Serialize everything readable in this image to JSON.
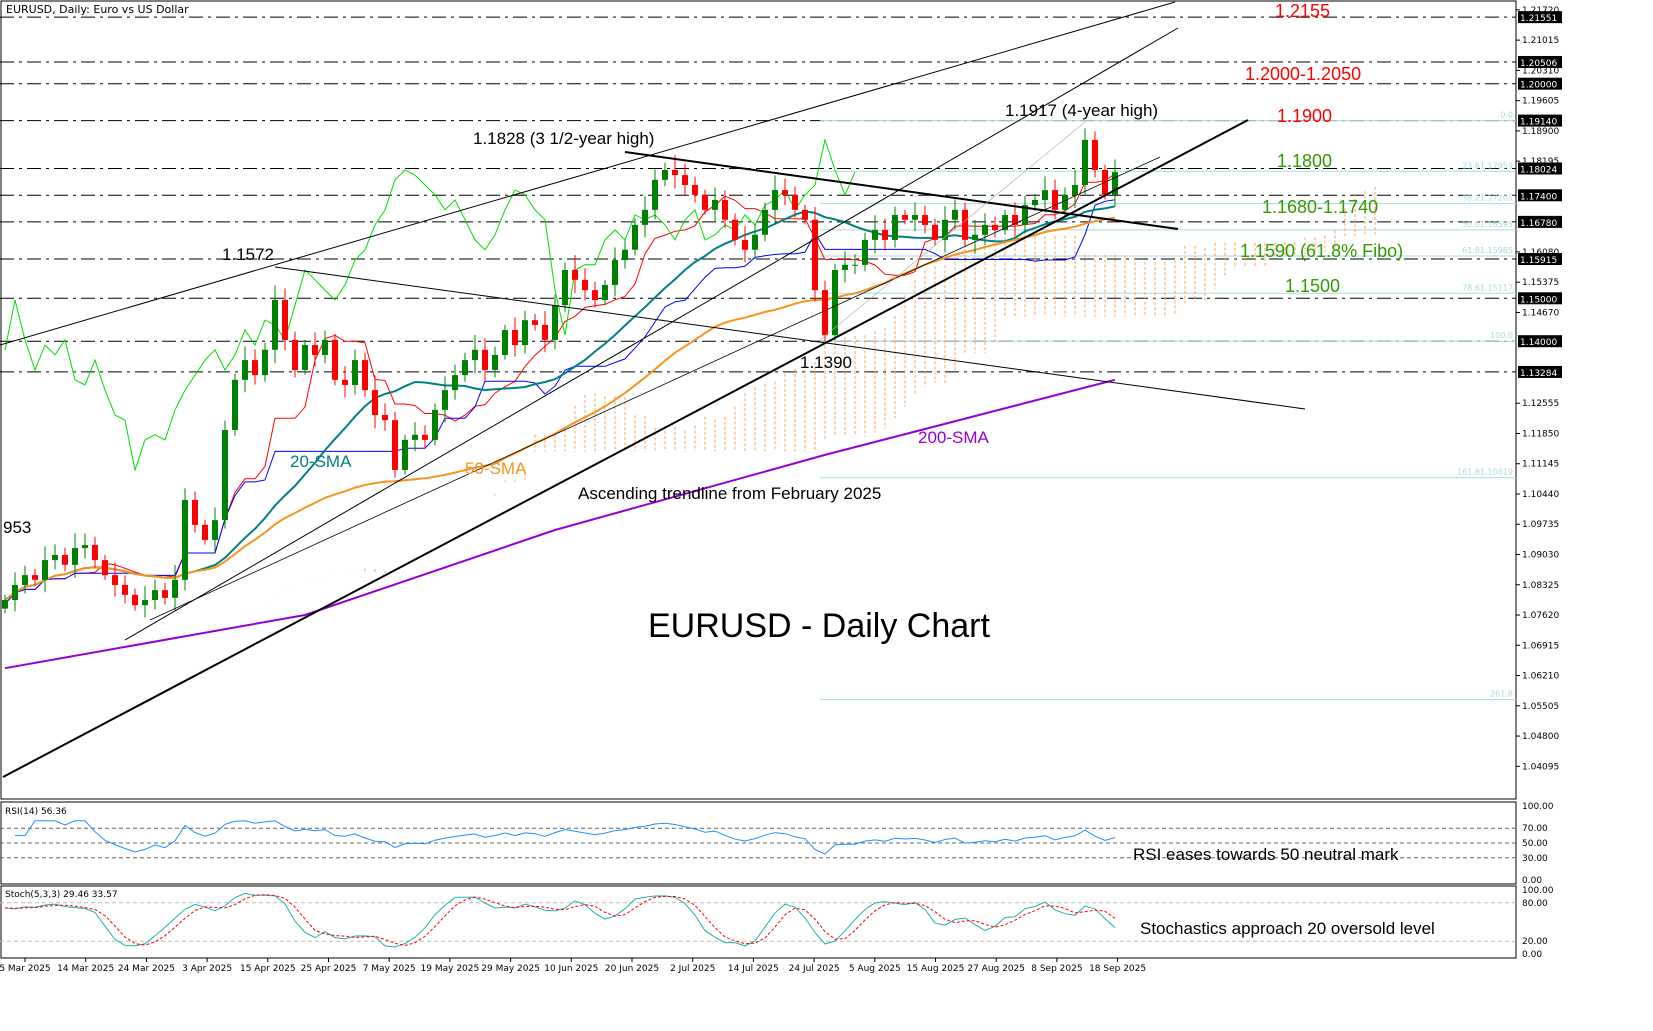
{
  "header": {
    "title": "EURUSD, Daily:  Euro vs US Dollar"
  },
  "chart_data": {
    "type": "candlestick",
    "title": "EURUSD - Daily Chart",
    "symbol": "EURUSD",
    "timeframe": "Daily",
    "price_axis": {
      "range": [
        1.0376,
        1.2195
      ],
      "ticks": [
        "1.21720",
        "1.21015",
        "1.20310",
        "1.19605",
        "1.18900",
        "1.18195",
        "1.16080",
        "1.15375",
        "1.14670",
        "1.12555",
        "1.11850",
        "1.11145",
        "1.10440",
        "1.09735",
        "1.09030",
        "1.08325",
        "1.07620",
        "1.06915",
        "1.06210",
        "1.05505",
        "1.04800",
        "1.04095"
      ],
      "highlighted_levels": [
        "1.21551",
        "1.20506",
        "1.20000",
        "1.19140",
        "1.18024",
        "1.17400",
        "1.16780",
        "1.15915",
        "1.15000",
        "1.14000",
        "1.13284"
      ]
    },
    "date_ticks": [
      "5 Mar 2025",
      "14 Mar 2025",
      "24 Mar 2025",
      "3 Apr 2025",
      "15 Apr 2025",
      "25 Apr 2025",
      "7 May 2025",
      "19 May 2025",
      "29 May 2025",
      "10 Jun 2025",
      "20 Jun 2025",
      "2 Jul 2025",
      "14 Jul 2025",
      "24 Jul 2025",
      "5 Aug 2025",
      "15 Aug 2025",
      "27 Aug 2025",
      "8 Sep 2025",
      "18 Sep 2025"
    ],
    "closes": [
      1.0797,
      1.0832,
      1.0855,
      1.0844,
      1.089,
      1.0902,
      1.0879,
      1.0918,
      1.0925,
      1.089,
      1.0855,
      1.0832,
      1.0809,
      1.0785,
      1.0797,
      1.082,
      1.0802,
      1.0844,
      1.103,
      1.0972,
      1.0937,
      1.0983,
      1.1193,
      1.131,
      1.1356,
      1.1321,
      1.138,
      1.1496,
      1.1403,
      1.1333,
      1.1391,
      1.1368,
      1.1403,
      1.131,
      1.1298,
      1.1356,
      1.1286,
      1.1228,
      1.1216,
      1.11,
      1.117,
      1.1182,
      1.117,
      1.124,
      1.1286,
      1.1321,
      1.1356,
      1.138,
      1.1333,
      1.1368,
      1.1426,
      1.1391,
      1.1449,
      1.1438,
      1.1403,
      1.1484,
      1.1566,
      1.1543,
      1.1519,
      1.1496,
      1.1531,
      1.1589,
      1.1613,
      1.1671,
      1.1706,
      1.1776,
      1.1799,
      1.1787,
      1.1764,
      1.1741,
      1.1706,
      1.1729,
      1.1683,
      1.1636,
      1.1613,
      1.1648,
      1.1706,
      1.1752,
      1.1741,
      1.1706,
      1.1683,
      1.1519,
      1.1414,
      1.1566,
      1.1578,
      1.1578,
      1.1636,
      1.1659,
      1.1636,
      1.1694,
      1.1683,
      1.1694,
      1.1671,
      1.1636,
      1.1683,
      1.1706,
      1.1636,
      1.1648,
      1.1671,
      1.1659,
      1.1694,
      1.1671,
      1.1717,
      1.1729,
      1.1752,
      1.1706,
      1.1741,
      1.1764,
      1.1869,
      1.1799,
      1.1741,
      1.1794
    ],
    "sma200": [
      [
        0,
        1.0638
      ],
      [
        30,
        1.0762
      ],
      [
        55,
        1.096
      ],
      [
        82,
        1.1135
      ],
      [
        111,
        1.131
      ]
    ],
    "fibonacci": [
      {
        "label": "0.0",
        "price": 1.1914
      },
      {
        "label": "23.61.17959",
        "price": 1.17959
      },
      {
        "label": "38.21.17205",
        "price": 1.17205
      },
      {
        "label": "50.01.16595",
        "price": 1.16595
      },
      {
        "label": "61.81.15985",
        "price": 1.15985
      },
      {
        "label": "78.61.15117",
        "price": 1.15117
      },
      {
        "label": "100.0",
        "price": 1.14
      },
      {
        "label": "161.81.10819",
        "price": 1.10819
      },
      {
        "label": "261.8",
        "price": 1.0565
      }
    ],
    "annotations": {
      "r1": "1.2155",
      "r2": "1.2000-1.2050",
      "r3": "1.1900",
      "s1": "1.1800",
      "s2": "1.1680-1.1740",
      "s3": "1.1590 (61.8% Fibo)",
      "s4": "1.1500",
      "high4y": "1.1917 (4-year high)",
      "high35y": "1.1828 (3 1/2-year high)",
      "p1572": "1.1572",
      "p1390": "1.1390",
      "p953": "953",
      "sma20": "20-SMA",
      "sma50": "50-SMA",
      "sma200": "200-SMA",
      "trend": "Ascending trendline from February 2025"
    },
    "colors": {
      "bull": "#008000",
      "bear": "#ff0000",
      "sma20": "#008080",
      "sma50": "#f7931e",
      "sma200": "#9400d3",
      "tenkan": "#ff0000",
      "kijun": "#0000ff",
      "chikou": "#00dd00",
      "cloud_up": "#f4a460",
      "cloud_down": "#d8bfd8",
      "fibo": "#a8dadc",
      "resistance": "#ff0000",
      "support": "#339900"
    },
    "rsi": {
      "label": "RSI(14) 56.36",
      "levels": [
        "100.00",
        "70.00",
        "50.00",
        "30.00",
        "0.00"
      ],
      "note": "RSI eases towards 50 neutral mark"
    },
    "stoch": {
      "label": "Stoch(5,3,3) 29.46 33.57",
      "levels": [
        "100.00",
        "80.00",
        "20.00",
        "0.00"
      ],
      "note": "Stochastics approach 20 oversold level"
    }
  }
}
